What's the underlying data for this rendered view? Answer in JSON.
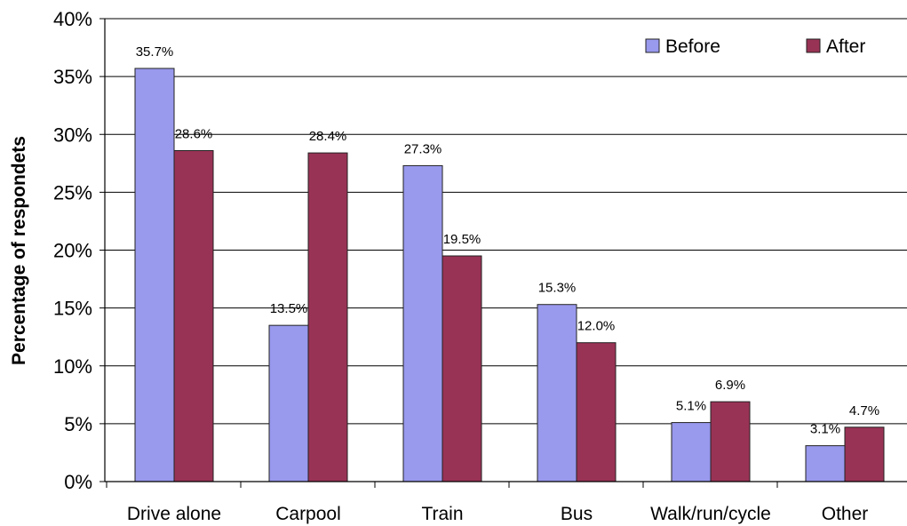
{
  "chart_data": {
    "type": "bar",
    "title": "",
    "xlabel": "",
    "ylabel": "Percentage of respondets",
    "categories": [
      "Drive alone",
      "Carpool",
      "Train",
      "Bus",
      "Walk/run/cycle",
      "Other"
    ],
    "series": [
      {
        "name": "Before",
        "color": "#9999ee",
        "values": [
          35.7,
          13.5,
          27.3,
          15.3,
          5.1,
          3.1
        ],
        "labels": [
          "35.7%",
          "13.5%",
          "27.3%",
          "15.3%",
          "5.1%",
          "3.1%"
        ]
      },
      {
        "name": "After",
        "color": "#993355",
        "values": [
          28.6,
          28.4,
          19.5,
          12.0,
          6.9,
          4.7
        ],
        "labels": [
          "28.6%",
          "28.4%",
          "19.5%",
          "12.0%",
          "6.9%",
          "4.7%"
        ]
      }
    ],
    "ylim": [
      0,
      40
    ],
    "yticks": [
      0,
      5,
      10,
      15,
      20,
      25,
      30,
      35,
      40
    ],
    "ytick_labels": [
      "0%",
      "5%",
      "10%",
      "15%",
      "20%",
      "25%",
      "30%",
      "35%",
      "40%"
    ],
    "grid": true,
    "legend_position": "top-right"
  }
}
